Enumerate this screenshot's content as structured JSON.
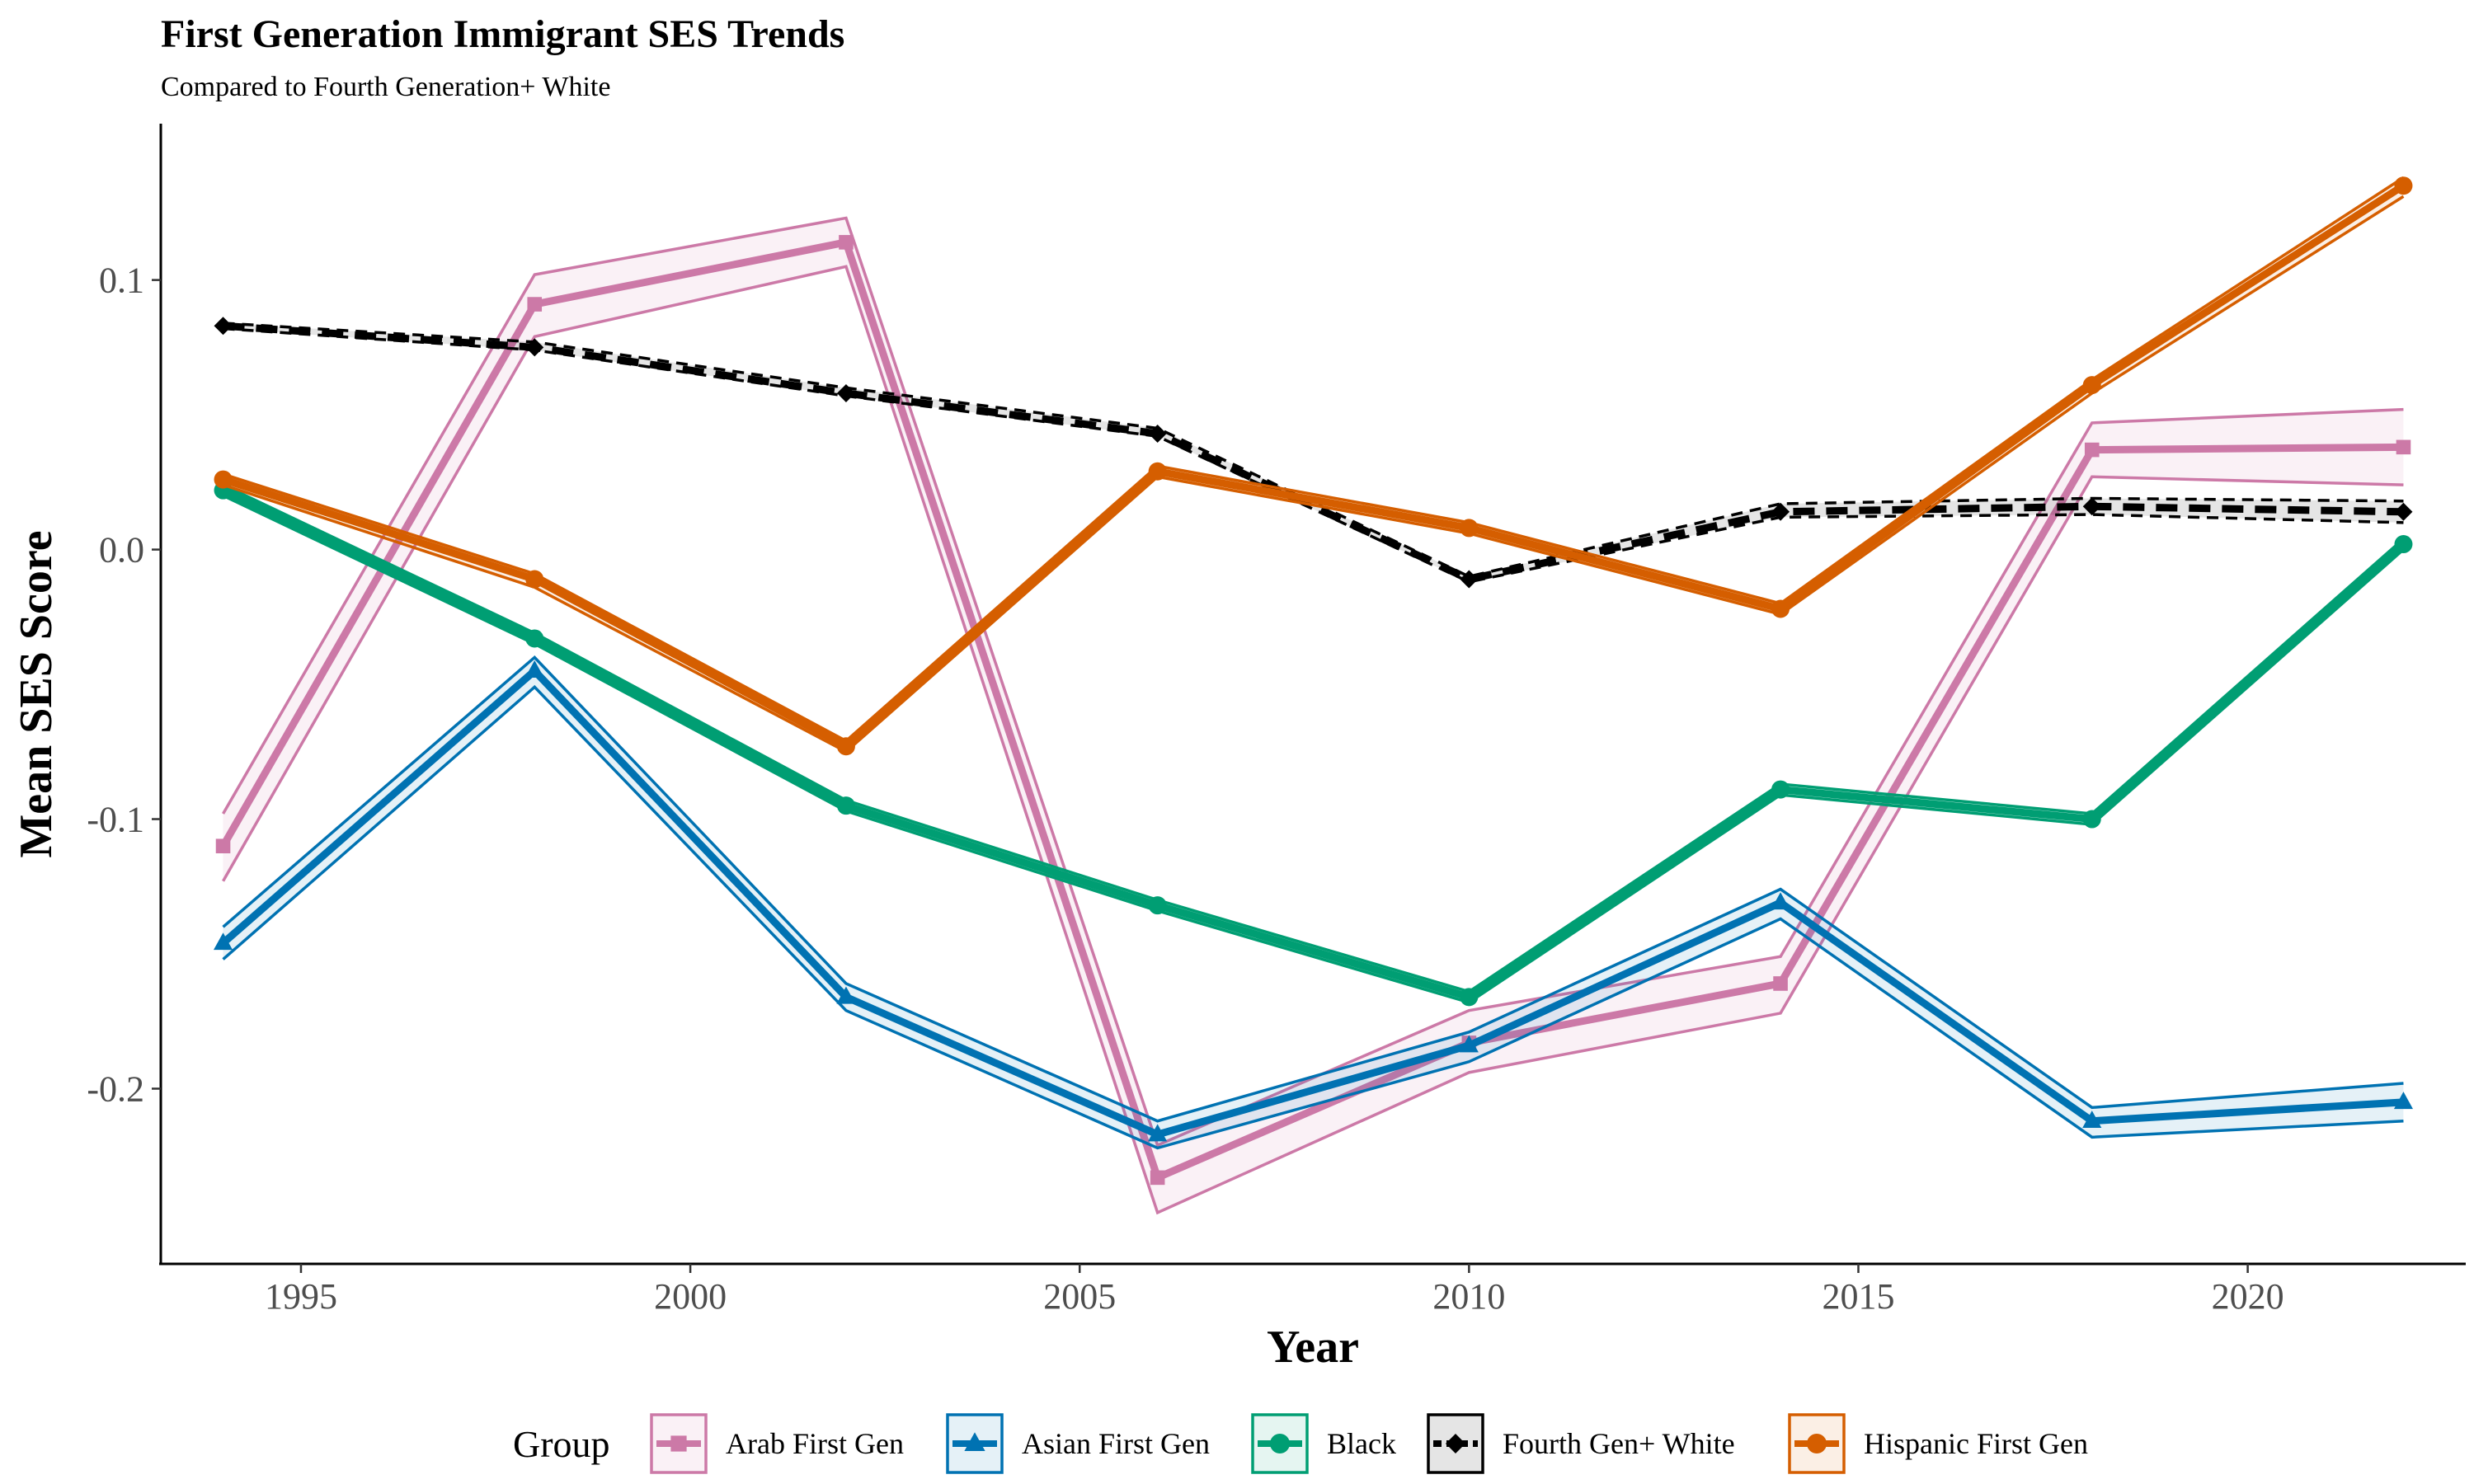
{
  "chart_data": {
    "type": "line",
    "title": "First Generation Immigrant SES Trends",
    "subtitle": "Compared to Fourth Generation+ White",
    "xlabel": "Year",
    "ylabel": "Mean SES Score",
    "xlim": [
      1993.2,
      2022.8
    ],
    "ylim": [
      -0.265,
      0.158
    ],
    "x_ticks": [
      1995,
      2000,
      2005,
      2010,
      2015,
      2020
    ],
    "y_ticks": [
      -0.2,
      -0.1,
      0.0,
      0.1
    ],
    "y_tick_labels": [
      "-0.2",
      "-0.1",
      "0.0",
      "0.1"
    ],
    "grid": false,
    "legend_position": "bottom",
    "legend_title": "Group",
    "x": [
      1994,
      1998,
      2002,
      2006,
      2010,
      2014,
      2018,
      2022
    ],
    "series": [
      {
        "name": "Arab First Gen",
        "color": "#CC79A7",
        "marker": "square",
        "values": [
          -0.11,
          0.091,
          0.114,
          -0.233,
          -0.183,
          -0.161,
          0.037,
          0.038
        ],
        "lower": [
          -0.123,
          0.079,
          0.105,
          -0.246,
          -0.194,
          -0.172,
          0.027,
          0.024
        ],
        "upper": [
          -0.098,
          0.102,
          0.123,
          -0.221,
          -0.171,
          -0.151,
          0.047,
          0.052
        ]
      },
      {
        "name": "Asian First Gen",
        "color": "#0072B2",
        "marker": "triangle",
        "values": [
          -0.146,
          -0.045,
          -0.166,
          -0.217,
          -0.184,
          -0.131,
          -0.212,
          -0.205
        ],
        "lower": [
          -0.152,
          -0.051,
          -0.171,
          -0.222,
          -0.19,
          -0.137,
          -0.218,
          -0.212
        ],
        "upper": [
          -0.14,
          -0.04,
          -0.161,
          -0.212,
          -0.179,
          -0.126,
          -0.207,
          -0.198
        ]
      },
      {
        "name": "Black",
        "color": "#009E73",
        "marker": "circle",
        "values": [
          0.022,
          -0.033,
          -0.095,
          -0.132,
          -0.166,
          -0.089,
          -0.1,
          0.002
        ],
        "lower": [
          0.02,
          -0.035,
          -0.097,
          -0.134,
          -0.168,
          -0.091,
          -0.102,
          0.0
        ],
        "upper": [
          0.024,
          -0.031,
          -0.093,
          -0.13,
          -0.164,
          -0.087,
          -0.098,
          0.004
        ]
      },
      {
        "name": "Fourth Gen+ White",
        "color": "#000000",
        "marker": "diamond",
        "values": [
          0.083,
          0.075,
          0.058,
          0.043,
          -0.011,
          0.014,
          0.016,
          0.014
        ],
        "lower": [
          0.082,
          0.074,
          0.057,
          0.042,
          -0.012,
          0.012,
          0.013,
          0.01
        ],
        "upper": [
          0.084,
          0.077,
          0.06,
          0.045,
          -0.01,
          0.017,
          0.019,
          0.018
        ]
      },
      {
        "name": "Hispanic First Gen",
        "color": "#D55E00",
        "marker": "circle",
        "values": [
          0.026,
          -0.011,
          -0.073,
          0.029,
          0.008,
          -0.022,
          0.061,
          0.135
        ],
        "lower": [
          0.024,
          -0.014,
          -0.075,
          0.027,
          0.006,
          -0.024,
          0.058,
          0.131
        ],
        "upper": [
          0.028,
          -0.009,
          -0.071,
          0.031,
          0.01,
          -0.02,
          0.063,
          0.138
        ]
      }
    ]
  }
}
